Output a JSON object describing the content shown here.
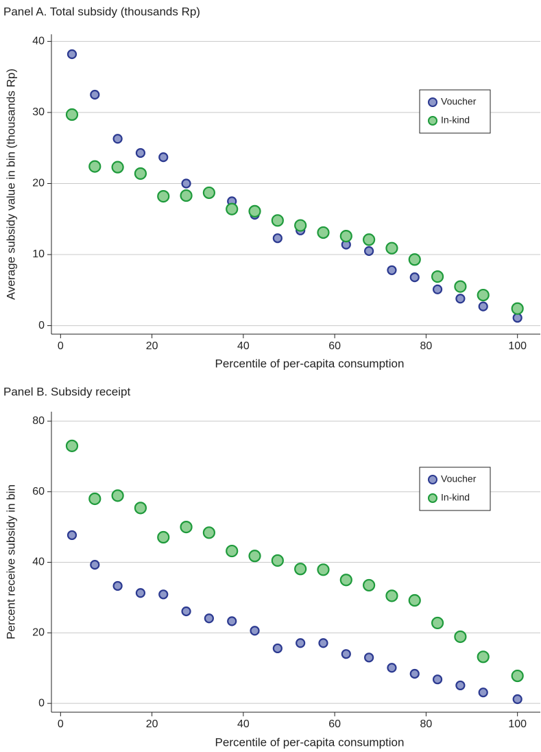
{
  "chart_data": [
    {
      "type": "scatter",
      "title": "Panel A. Total subsidy (thousands Rp)",
      "x_label": "Percentile of per-capita consumption",
      "y_label": "Average subsidy value in bin (thousands Rp)",
      "x": [
        2.5,
        7.5,
        12.5,
        17.5,
        22.5,
        27.5,
        32.5,
        37.5,
        42.5,
        47.5,
        52.5,
        57.5,
        62.5,
        67.5,
        72.5,
        77.5,
        82.5,
        87.5,
        92.5,
        100
      ],
      "series": [
        {
          "name": "Voucher",
          "color": "#8e98c9",
          "edge_color": "#2b3990",
          "values": [
            38.2,
            32.5,
            26.3,
            24.3,
            23.7,
            20.0,
            18.6,
            17.5,
            15.6,
            12.3,
            13.4,
            12.9,
            11.4,
            10.5,
            7.8,
            6.8,
            5.1,
            3.8,
            2.7,
            1.1
          ]
        },
        {
          "name": "In-kind",
          "color": "#8fd094",
          "edge_color": "#1e9a3b",
          "values": [
            29.7,
            22.4,
            22.3,
            21.4,
            18.2,
            18.3,
            18.7,
            16.4,
            16.1,
            14.8,
            14.1,
            13.1,
            12.6,
            12.1,
            10.9,
            9.3,
            6.9,
            5.5,
            4.3,
            2.4
          ]
        }
      ],
      "xlim": [
        -2,
        105
      ],
      "ylim": [
        -1.2,
        41
      ],
      "xticks": [
        0,
        20,
        40,
        60,
        80,
        100
      ],
      "yticks": [
        0,
        10,
        20,
        30,
        40
      ],
      "grid": true,
      "legend": "upper right"
    },
    {
      "type": "scatter",
      "title": "Panel B. Subsidy receipt",
      "x_label": "Percentile of per-capita consumption",
      "y_label": "Percent receive subsidy in bin",
      "x": [
        2.5,
        7.5,
        12.5,
        17.5,
        22.5,
        27.5,
        32.5,
        37.5,
        42.5,
        47.5,
        52.5,
        57.5,
        62.5,
        67.5,
        72.5,
        77.5,
        82.5,
        87.5,
        92.5,
        100
      ],
      "series": [
        {
          "name": "Voucher",
          "color": "#8e98c9",
          "edge_color": "#2b3990",
          "values": [
            47.7,
            39.3,
            33.3,
            31.3,
            30.9,
            26.1,
            24.1,
            23.3,
            20.6,
            15.6,
            17.1,
            17.1,
            14.0,
            13.0,
            10.1,
            8.4,
            6.8,
            5.1,
            3.1,
            1.2
          ]
        },
        {
          "name": "In-kind",
          "color": "#8fd094",
          "edge_color": "#1e9a3b",
          "values": [
            73.0,
            58.0,
            58.9,
            55.4,
            47.1,
            50.0,
            48.4,
            43.2,
            41.8,
            40.5,
            38.1,
            37.9,
            35.0,
            33.5,
            30.5,
            29.2,
            22.8,
            18.9,
            13.2,
            7.8
          ]
        }
      ],
      "xlim": [
        -2,
        105
      ],
      "ylim": [
        -2.5,
        82.7
      ],
      "xticks": [
        0,
        20,
        40,
        60,
        80,
        100
      ],
      "yticks": [
        0,
        20,
        40,
        60,
        80
      ],
      "grid": true,
      "legend": "upper right"
    }
  ]
}
